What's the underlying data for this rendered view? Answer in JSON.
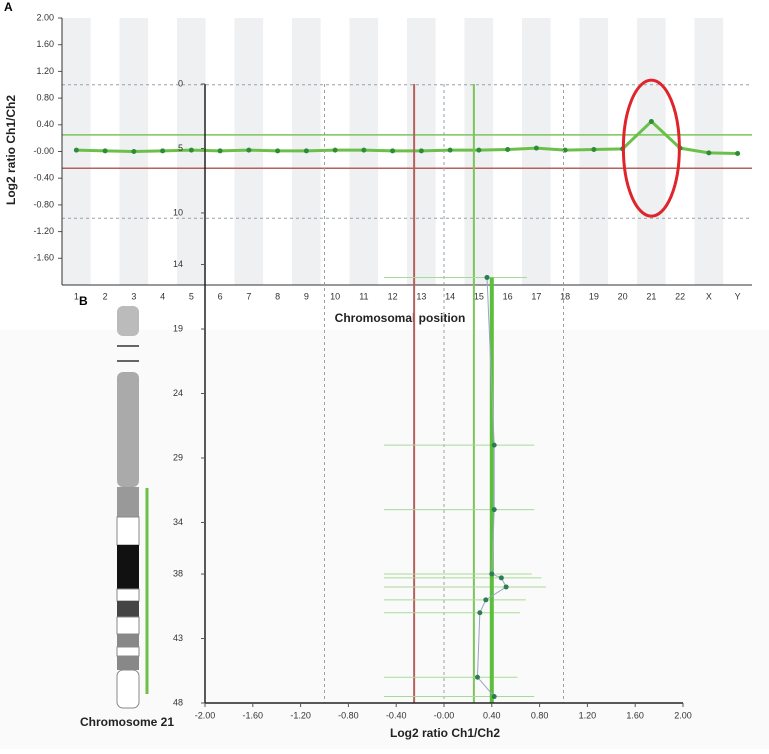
{
  "chart_data": [
    {
      "type": "line",
      "panel": "A",
      "y_label": "Log2 ratio Ch1/Ch2",
      "x_label": "Chromosomal position",
      "categories": [
        "1",
        "2",
        "3",
        "4",
        "5",
        "6",
        "7",
        "8",
        "9",
        "10",
        "11",
        "12",
        "13",
        "14",
        "15",
        "16",
        "17",
        "18",
        "19",
        "20",
        "21",
        "22",
        "X",
        "Y"
      ],
      "series": [
        {
          "color": "#2e8b3a",
          "values": [
            0.02,
            0.01,
            0.0,
            0.01,
            0.02,
            0.01,
            0.02,
            0.01,
            0.01,
            0.02,
            0.02,
            0.01,
            0.01,
            0.02,
            0.02,
            0.03,
            0.05,
            0.02,
            0.03,
            0.04,
            0.45,
            0.05,
            -0.02,
            -0.03
          ]
        }
      ],
      "ylim": [
        -2,
        2
      ],
      "yticks": [
        {
          "value": 2,
          "label": "2.00"
        },
        {
          "value": 1.6,
          "label": "1.60"
        },
        {
          "value": 1.2,
          "label": "1.20"
        },
        {
          "value": 0.8,
          "label": "0.80"
        },
        {
          "value": 0.4,
          "label": "0.40"
        },
        {
          "value": 0,
          "label": "-0.00"
        },
        {
          "value": -0.4,
          "label": "-0.40"
        },
        {
          "value": -0.8,
          "label": "-0.80"
        },
        {
          "value": -1.2,
          "label": "-1.20"
        },
        {
          "value": -1.6,
          "label": "-1.60"
        }
      ],
      "reference_lines": [
        {
          "value": 0.25,
          "color": "#7dc45a"
        },
        {
          "value": -0.25,
          "color": "#b5615e"
        },
        {
          "value": 1,
          "color": "#9aa0a8",
          "dashed": true
        },
        {
          "value": -1,
          "color": "#9aa0a8",
          "dashed": true
        }
      ],
      "highlight": "21"
    },
    {
      "type": "scatter",
      "panel": "B",
      "x_label": "Log2 ratio Ch1/Ch2",
      "ideogram_label": "Chromosome 21",
      "x": [
        0.36,
        0.42,
        0.42,
        0.4,
        0.48,
        0.52,
        0.35,
        0.3,
        0.28,
        0.42
      ],
      "y": [
        15,
        28,
        33,
        38,
        38.3,
        39,
        40,
        41,
        46,
        47.5
      ],
      "color": "#2e7d52",
      "xlim": [
        -2,
        2
      ],
      "xticks": [
        {
          "value": -2,
          "label": "-2.00"
        },
        {
          "value": -1.6,
          "label": "-1.60"
        },
        {
          "value": -1.2,
          "label": "-1.20"
        },
        {
          "value": -0.8,
          "label": "-0.80"
        },
        {
          "value": -0.4,
          "label": "-0.40"
        },
        {
          "value": 0,
          "label": "-0.00"
        },
        {
          "value": 0.4,
          "label": "0.40"
        },
        {
          "value": 0.8,
          "label": "0.80"
        },
        {
          "value": 1.2,
          "label": "1.20"
        },
        {
          "value": 1.6,
          "label": "1.60"
        },
        {
          "value": 2,
          "label": "2.00"
        }
      ],
      "ylim": [
        0,
        48
      ],
      "yticks": [
        0,
        5,
        10,
        14,
        19,
        24,
        29,
        34,
        38,
        43,
        48
      ],
      "reference_lines": [
        {
          "value": 0.25,
          "color": "#7dc45a"
        },
        {
          "value": -0.25,
          "color": "#b5615e"
        },
        {
          "value": -1,
          "color": "#9aa0a8",
          "dashed": true
        },
        {
          "value": 0,
          "color": "#9aa0a8",
          "dashed": true
        },
        {
          "value": 1,
          "color": "#9aa0a8",
          "dashed": true
        }
      ],
      "segments": [
        {
          "value": 0.4,
          "start": 15,
          "end": 48,
          "color": "#5cbf3c"
        }
      ]
    }
  ]
}
